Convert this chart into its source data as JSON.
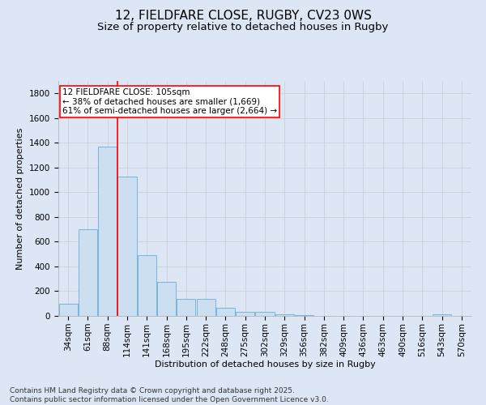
{
  "title1": "12, FIELDFARE CLOSE, RUGBY, CV23 0WS",
  "title2": "Size of property relative to detached houses in Rugby",
  "xlabel": "Distribution of detached houses by size in Rugby",
  "ylabel": "Number of detached properties",
  "categories": [
    "34sqm",
    "61sqm",
    "88sqm",
    "114sqm",
    "141sqm",
    "168sqm",
    "195sqm",
    "222sqm",
    "248sqm",
    "275sqm",
    "302sqm",
    "329sqm",
    "356sqm",
    "382sqm",
    "409sqm",
    "436sqm",
    "463sqm",
    "490sqm",
    "516sqm",
    "543sqm",
    "570sqm"
  ],
  "values": [
    100,
    700,
    1370,
    1130,
    490,
    275,
    140,
    140,
    68,
    35,
    32,
    12,
    5,
    2,
    2,
    2,
    1,
    1,
    0,
    15,
    0
  ],
  "bar_color": "#ccdff0",
  "bar_edge_color": "#6aaed6",
  "vline_x": 2.5,
  "vline_color": "red",
  "annotation_text": "12 FIELDFARE CLOSE: 105sqm\n← 38% of detached houses are smaller (1,669)\n61% of semi-detached houses are larger (2,664) →",
  "annotation_box_color": "white",
  "annotation_box_edge_color": "red",
  "ylim": [
    0,
    1900
  ],
  "yticks": [
    0,
    200,
    400,
    600,
    800,
    1000,
    1200,
    1400,
    1600,
    1800
  ],
  "grid_color": "#cccccc",
  "background_color": "#dce6f5",
  "footer1": "Contains HM Land Registry data © Crown copyright and database right 2025.",
  "footer2": "Contains public sector information licensed under the Open Government Licence v3.0.",
  "title_fontsize": 11,
  "subtitle_fontsize": 9.5,
  "axis_label_fontsize": 8,
  "tick_fontsize": 7.5,
  "annotation_fontsize": 7.5,
  "footer_fontsize": 6.5
}
